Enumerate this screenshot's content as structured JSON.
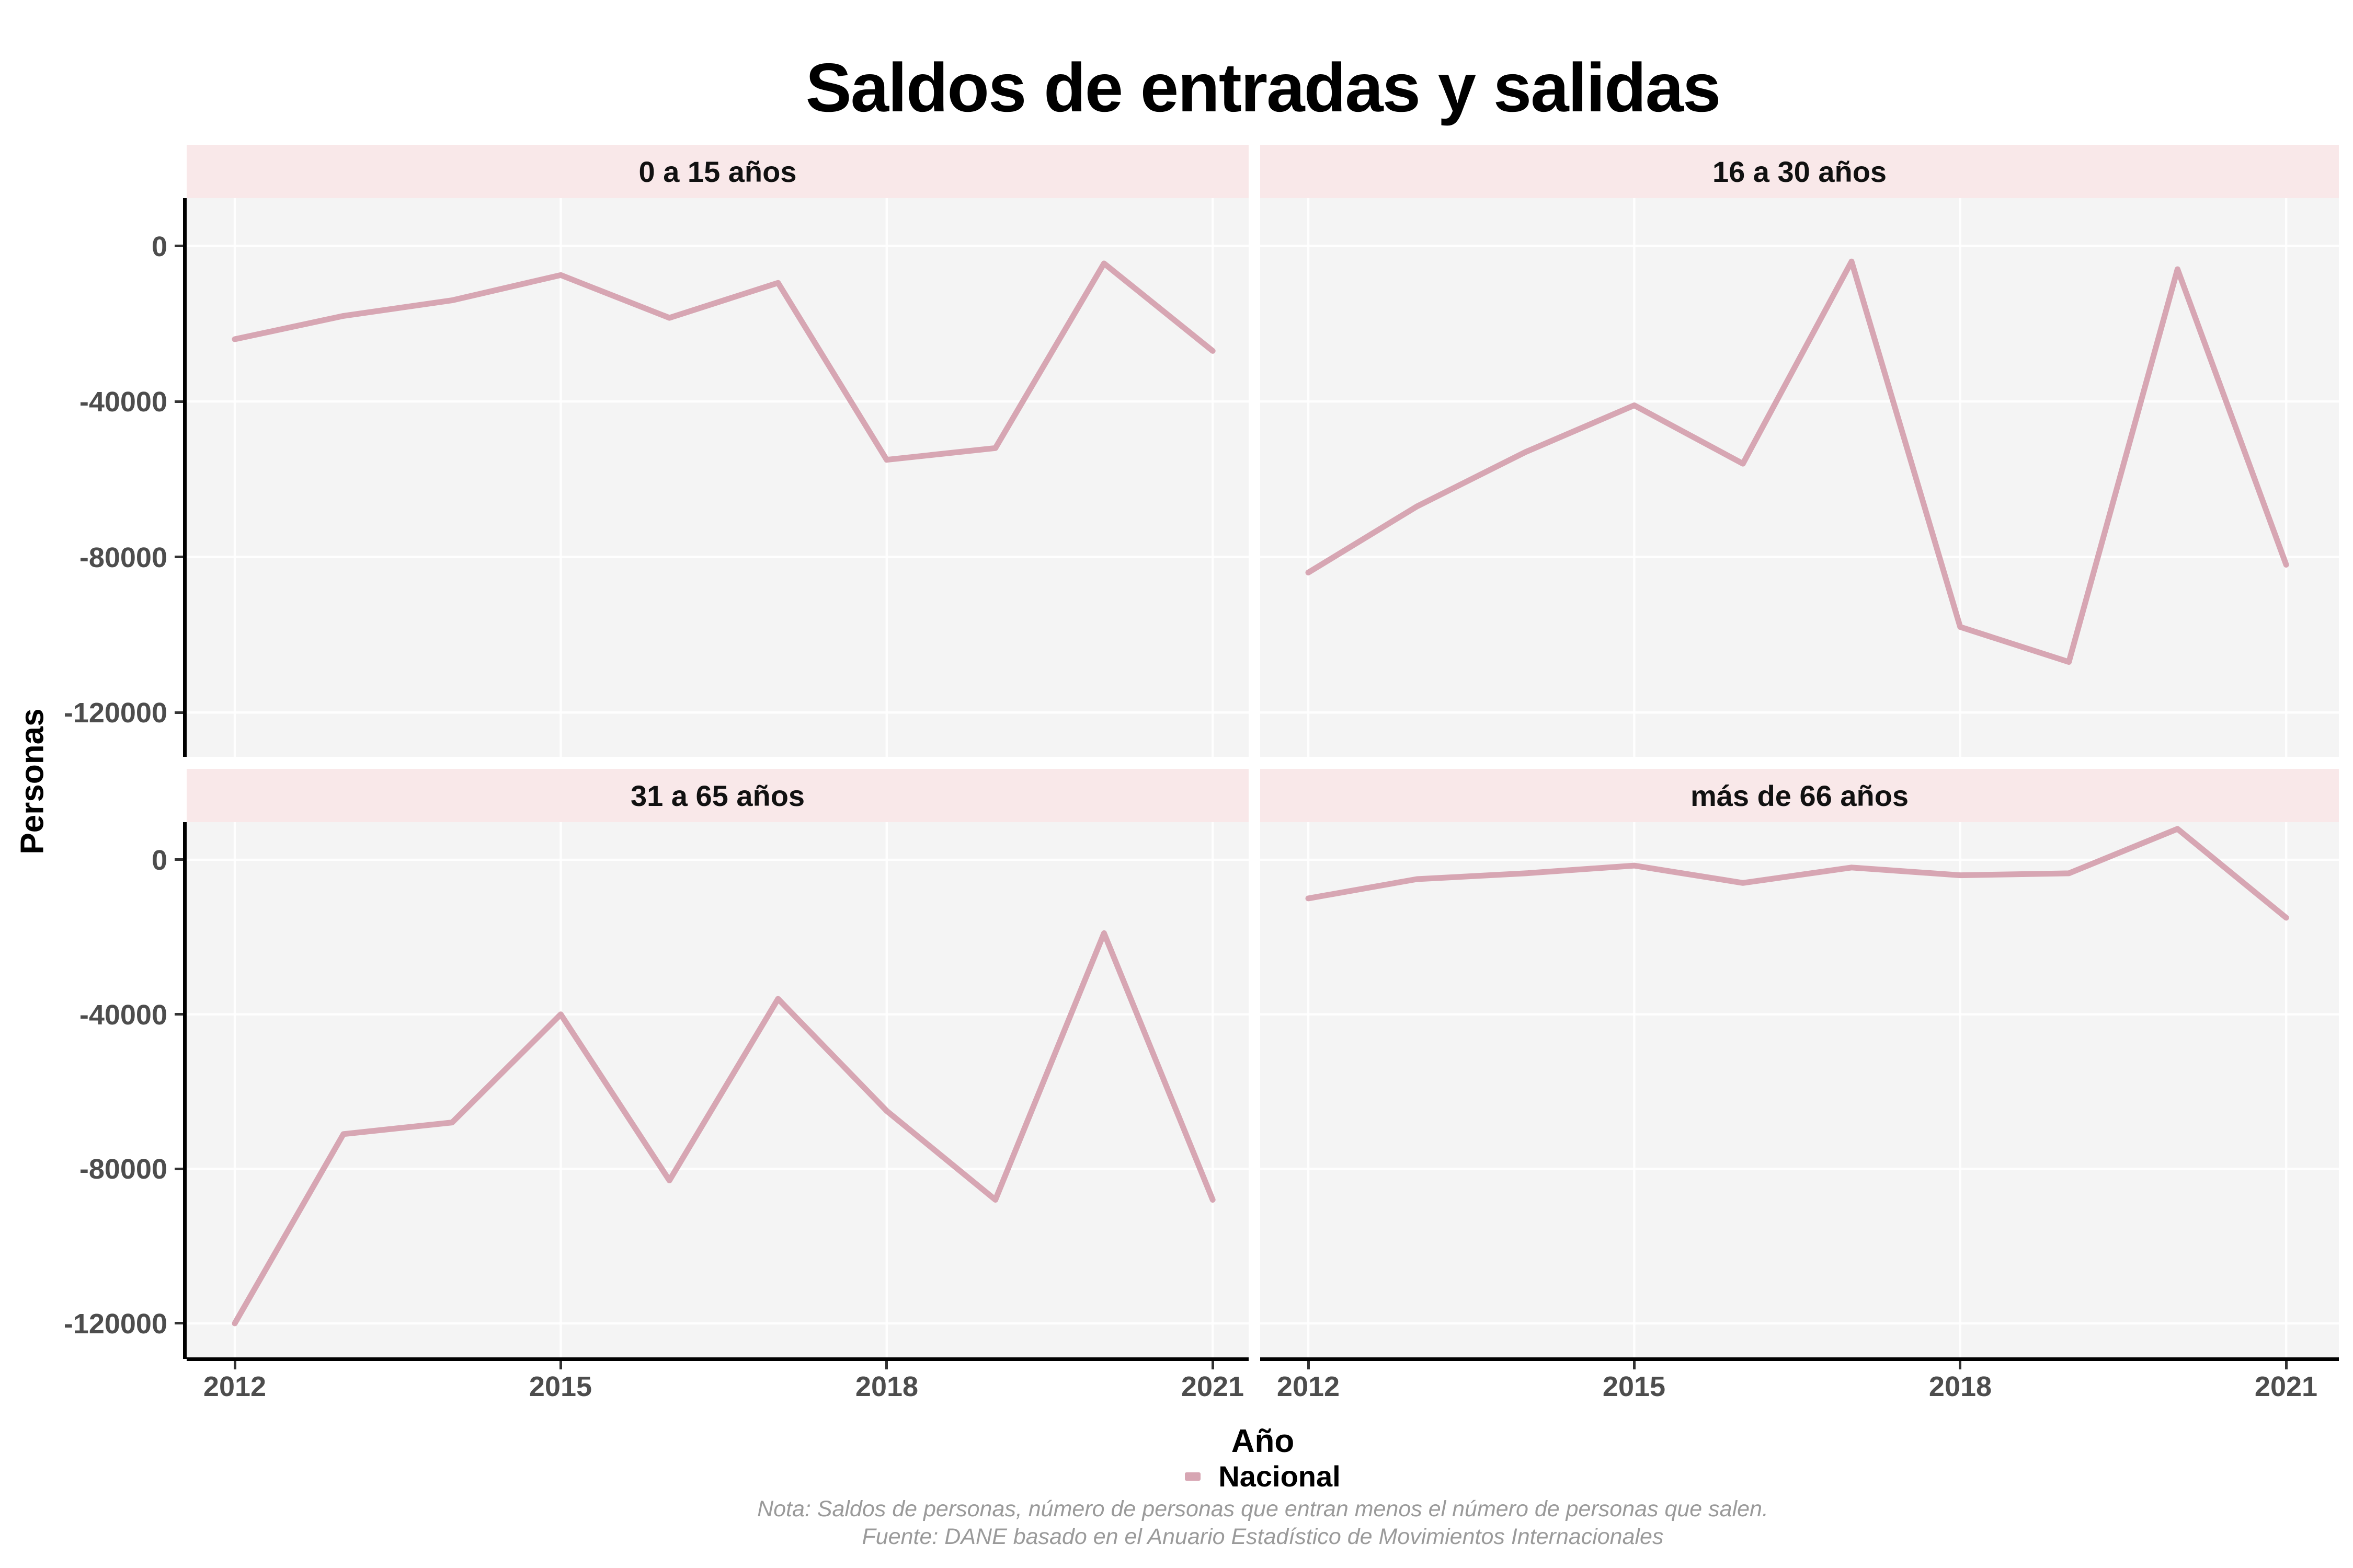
{
  "title": "Saldos de entradas y salidas",
  "y_axis_title": "Personas",
  "x_axis_title": "Año",
  "legend": {
    "label": "Nacional",
    "key_color": "#d7a6b3"
  },
  "notes": [
    "Nota: Saldos de personas, número de personas que entran menos el número de personas que salen.",
    "Fuente: DANE basado en el Anuario Estadístico de Movimientos Internacionales"
  ],
  "colors": {
    "line": "#d7a6b3",
    "panel_bg": "#f4f4f4",
    "strip_bg": "#f9e8e9",
    "grid": "#ffffff",
    "axis_text": "#4d4d4d",
    "strip_text": "#111111",
    "note_text": "#9a9a9a",
    "axis_line": "#000000"
  },
  "chart_data": {
    "type": "line",
    "series_name": "Nacional",
    "x": [
      2012,
      2013,
      2014,
      2015,
      2016,
      2017,
      2018,
      2019,
      2020,
      2021
    ],
    "x_ticks": [
      2012,
      2015,
      2018,
      2021
    ],
    "x_tick_labels": [
      "2012",
      "2015",
      "2018",
      "2021"
    ],
    "y_ticks": [
      0,
      -40000,
      -80000,
      -120000
    ],
    "y_tick_labels": [
      "0",
      "-40000",
      "-80000",
      "-120000"
    ],
    "grid": "major gridlines, white on gray panels",
    "legend_position": "bottom",
    "facets": [
      {
        "label": "0 a 15 años",
        "values": [
          -24000,
          -18000,
          -14000,
          -7500,
          -18500,
          -9500,
          -55000,
          -52000,
          -4500,
          -27000
        ],
        "ylim": [
          -131400,
          12300
        ]
      },
      {
        "label": "16 a 30 años",
        "values": [
          -84000,
          -67000,
          -53000,
          -41000,
          -56000,
          -4000,
          -98000,
          -107000,
          -6000,
          -82000
        ],
        "ylim": [
          -131400,
          12300
        ]
      },
      {
        "label": "31 a 65 años",
        "values": [
          -120000,
          -71000,
          -68000,
          -40000,
          -83000,
          -36000,
          -65000,
          -88000,
          -19000,
          -88000
        ],
        "ylim": [
          -129200,
          9740
        ]
      },
      {
        "label": "más de 66 años",
        "values": [
          -10000,
          -5000,
          -3500,
          -1500,
          -6000,
          -2000,
          -4000,
          -3500,
          8000,
          -15000
        ],
        "ylim": [
          -129200,
          9740
        ]
      }
    ]
  }
}
